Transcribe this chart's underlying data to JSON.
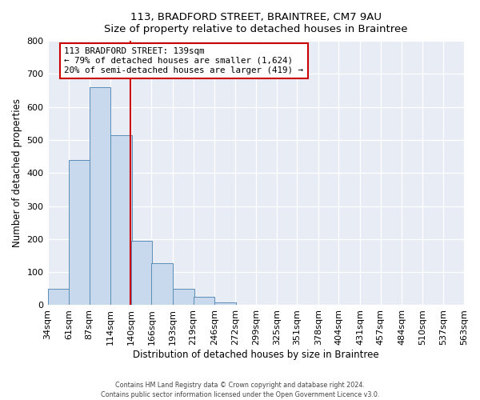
{
  "title": "113, BRADFORD STREET, BRAINTREE, CM7 9AU",
  "subtitle": "Size of property relative to detached houses in Braintree",
  "xlabel": "Distribution of detached houses by size in Braintree",
  "ylabel": "Number of detached properties",
  "bar_left_edges": [
    34,
    61,
    87,
    114,
    140,
    166,
    193,
    219,
    246,
    272,
    299,
    325
  ],
  "bar_heights": [
    50,
    440,
    660,
    515,
    195,
    127,
    50,
    25,
    8,
    2,
    0,
    2
  ],
  "bin_width": 27,
  "bar_color": "#c9d9ed",
  "bar_edge_color": "#5b8db8",
  "marker_x": 139,
  "marker_label": "113 BRADFORD STREET: 139sqm",
  "annotation_line1": "← 79% of detached houses are smaller (1,624)",
  "annotation_line2": "20% of semi-detached houses are larger (419) →",
  "annotation_box_facecolor": "#ffffff",
  "annotation_box_edgecolor": "#cc0000",
  "marker_line_color": "#cc0000",
  "ylim": [
    0,
    800
  ],
  "xlim": [
    34,
    564
  ],
  "tick_labels": [
    "34sqm",
    "61sqm",
    "87sqm",
    "114sqm",
    "140sqm",
    "166sqm",
    "193sqm",
    "219sqm",
    "246sqm",
    "272sqm",
    "299sqm",
    "325sqm",
    "351sqm",
    "378sqm",
    "404sqm",
    "431sqm",
    "457sqm",
    "484sqm",
    "510sqm",
    "537sqm",
    "563sqm"
  ],
  "tick_positions": [
    34,
    61,
    87,
    114,
    140,
    166,
    193,
    219,
    246,
    272,
    299,
    325,
    351,
    378,
    404,
    431,
    457,
    484,
    510,
    537,
    563
  ],
  "footer_line1": "Contains HM Land Registry data © Crown copyright and database right 2024.",
  "footer_line2": "Contains public sector information licensed under the Open Government Licence v3.0.",
  "fig_bg_color": "#ffffff",
  "plot_bg_color": "#e8edf5"
}
